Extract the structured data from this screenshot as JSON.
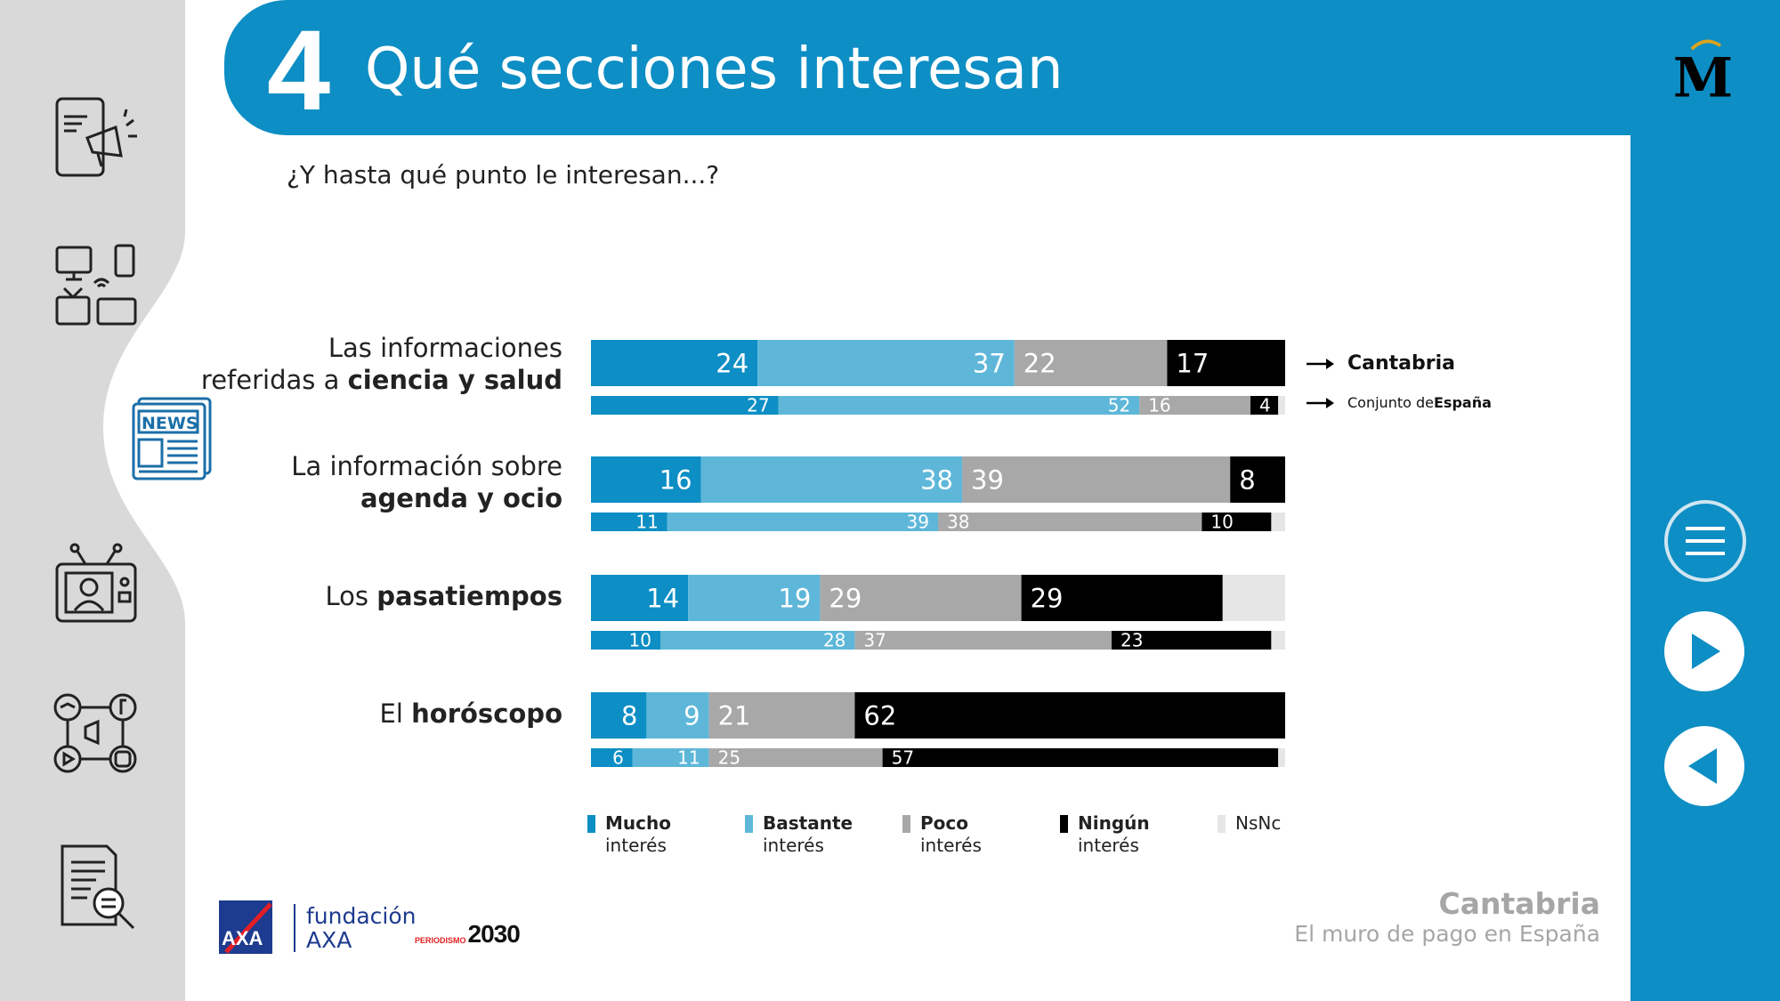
{
  "header": {
    "section_number": "4",
    "title": "Qué secciones interesan"
  },
  "subtitle": "¿Y hasta qué punto le interesan...?",
  "categories": [
    {
      "line1": "Las informaciones",
      "line2_pre": "referidas a ",
      "line2_bold": "ciencia y salud"
    },
    {
      "line1": "La información sobre",
      "line2_pre": "",
      "line2_bold": "agenda y ocio"
    },
    {
      "line1": "Los ",
      "line2_pre": "",
      "line2_bold": "pasatiempos"
    },
    {
      "line1": "El ",
      "line2_pre": "",
      "line2_bold": "horóscopo"
    }
  ],
  "series_keys": {
    "primary": "Cantabria",
    "secondary_pre": "Conjunto de ",
    "secondary_bold": "España"
  },
  "legend": [
    {
      "bold": "Mucho",
      "text": "interés",
      "color": "#0d8ec4"
    },
    {
      "bold": "Bastante",
      "text": "interés",
      "color": "#5eb7d9"
    },
    {
      "bold": "Poco",
      "text": "interés",
      "color": "#a8a8a8"
    },
    {
      "bold": "Ningún",
      "text": "interés",
      "color": "#000000"
    },
    {
      "bold": "",
      "text": "NsNc",
      "color": "#e6e6e6"
    }
  ],
  "chart_data": {
    "type": "bar",
    "orientation": "horizontal-stacked-100",
    "categories": [
      "ciencia y salud",
      "agenda y ocio",
      "pasatiempos",
      "horóscopo"
    ],
    "segments": [
      "Mucho interés",
      "Bastante interés",
      "Poco interés",
      "Ningún interés",
      "NsNc"
    ],
    "colors": [
      "#0d8ec4",
      "#5eb7d9",
      "#a8a8a8",
      "#000000",
      "#e6e6e6"
    ],
    "series": [
      {
        "name": "Cantabria",
        "values": [
          [
            24,
            37,
            22,
            17,
            0
          ],
          [
            16,
            38,
            39,
            8,
            0
          ],
          [
            14,
            19,
            29,
            29,
            9
          ],
          [
            8,
            9,
            21,
            62,
            0
          ]
        ]
      },
      {
        "name": "Conjunto de España",
        "values": [
          [
            27,
            52,
            16,
            4,
            1
          ],
          [
            11,
            39,
            38,
            10,
            2
          ],
          [
            10,
            28,
            37,
            23,
            2
          ],
          [
            6,
            11,
            25,
            57,
            1
          ]
        ]
      }
    ]
  },
  "footer": {
    "region": "Cantabria",
    "subtitle": "El muro de pago en España",
    "axa_line1": "fundación",
    "axa_line2": "AXA",
    "logo_axa": "AXA",
    "p2030_small": "PERIODISMO",
    "p2030_big": "2030"
  },
  "nav": {
    "menu_icon": "menu-icon",
    "next_icon": "play-icon",
    "back_icon": "back-icon"
  }
}
